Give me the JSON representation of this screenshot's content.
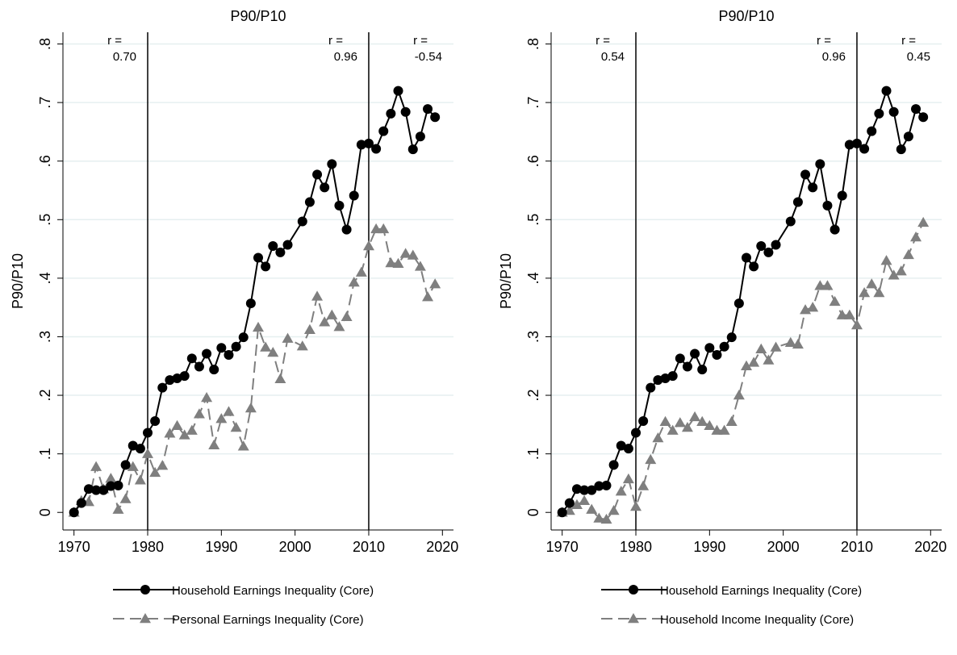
{
  "chart_data": [
    {
      "type": "line",
      "title": "P90/P10",
      "y_label": "P90/P10",
      "x": [
        1970,
        1971,
        1972,
        1973,
        1974,
        1975,
        1976,
        1977,
        1978,
        1979,
        1980,
        1981,
        1982,
        1983,
        1984,
        1985,
        1986,
        1987,
        1988,
        1989,
        1990,
        1991,
        1992,
        1993,
        1994,
        1995,
        1996,
        1997,
        1998,
        1999,
        2001,
        2002,
        2003,
        2004,
        2005,
        2006,
        2007,
        2008,
        2009,
        2010,
        2011,
        2012,
        2013,
        2014,
        2015,
        2016,
        2017,
        2018,
        2019
      ],
      "series": [
        {
          "name": "Household Earnings Inequality (Core)",
          "color": "#000000",
          "marker": "circle",
          "dash": "solid",
          "values": [
            0,
            0.016,
            0.04,
            0.038,
            0.038,
            0.045,
            0.046,
            0.081,
            0.114,
            0.109,
            0.136,
            0.156,
            0.213,
            0.226,
            0.229,
            0.233,
            0.263,
            0.249,
            0.271,
            0.244,
            0.281,
            0.269,
            0.283,
            0.299,
            0.357,
            0.435,
            0.42,
            0.455,
            0.444,
            0.457,
            0.497,
            0.53,
            0.577,
            0.555,
            0.595,
            0.524,
            0.483,
            0.541,
            0.628,
            0.63,
            0.621,
            0.651,
            0.681,
            0.72,
            0.684,
            0.62,
            0.642,
            0.689,
            0.675
          ]
        },
        {
          "name": "Personal Earnings Inequality (Core)",
          "color": "#7f7f7f",
          "marker": "triangle",
          "dash": "dashed",
          "values": [
            0,
            0.02,
            0.018,
            0.078,
            0.04,
            0.058,
            0.005,
            0.023,
            0.078,
            0.055,
            0.1,
            0.068,
            0.08,
            0.135,
            0.148,
            0.132,
            0.14,
            0.168,
            0.196,
            0.115,
            0.16,
            0.172,
            0.145,
            0.113,
            0.178,
            0.316,
            0.282,
            0.273,
            0.228,
            0.297,
            0.284,
            0.312,
            0.369,
            0.325,
            0.337,
            0.317,
            0.334,
            0.393,
            0.41,
            0.455,
            0.484,
            0.484,
            0.426,
            0.425,
            0.442,
            0.439,
            0.42,
            0.368,
            0.39
          ]
        }
      ],
      "vlines": [
        1980,
        2010
      ],
      "annotations": [
        [
          "r =",
          "0.70"
        ],
        [
          "r =",
          "0.96"
        ],
        [
          "r =",
          "-0.54"
        ]
      ],
      "xlim": [
        1968.5,
        2021.5
      ],
      "xticks": [
        1970,
        1980,
        1990,
        2000,
        2010,
        2020
      ],
      "ylim": [
        -0.03,
        0.82
      ],
      "yticks": [
        0,
        {
          "value": 0.1,
          "label": ".1"
        },
        {
          "value": 0.2,
          "label": ".2"
        },
        {
          "value": 0.3,
          "label": ".3"
        },
        {
          "value": 0.4,
          "label": ".4"
        },
        {
          "value": 0.5,
          "label": ".5"
        },
        {
          "value": 0.6,
          "label": ".6"
        },
        {
          "value": 0.7,
          "label": ".7"
        },
        {
          "value": 0.8,
          "label": ".8"
        }
      ],
      "grid": true
    },
    {
      "type": "line",
      "title": "P90/P10",
      "y_label": "P90/P10",
      "x": [
        1970,
        1971,
        1972,
        1973,
        1974,
        1975,
        1976,
        1977,
        1978,
        1979,
        1980,
        1981,
        1982,
        1983,
        1984,
        1985,
        1986,
        1987,
        1988,
        1989,
        1990,
        1991,
        1992,
        1993,
        1994,
        1995,
        1996,
        1997,
        1998,
        1999,
        2001,
        2002,
        2003,
        2004,
        2005,
        2006,
        2007,
        2008,
        2009,
        2010,
        2011,
        2012,
        2013,
        2014,
        2015,
        2016,
        2017,
        2018,
        2019
      ],
      "series": [
        {
          "name": "Household Earnings Inequality (Core)",
          "color": "#000000",
          "marker": "circle",
          "dash": "solid",
          "values": [
            0,
            0.016,
            0.04,
            0.038,
            0.038,
            0.045,
            0.046,
            0.081,
            0.114,
            0.109,
            0.136,
            0.156,
            0.213,
            0.226,
            0.229,
            0.233,
            0.263,
            0.249,
            0.271,
            0.244,
            0.281,
            0.269,
            0.283,
            0.299,
            0.357,
            0.435,
            0.42,
            0.455,
            0.444,
            0.457,
            0.497,
            0.53,
            0.577,
            0.555,
            0.595,
            0.524,
            0.483,
            0.541,
            0.628,
            0.63,
            0.621,
            0.651,
            0.681,
            0.72,
            0.684,
            0.62,
            0.642,
            0.689,
            0.675
          ]
        },
        {
          "name": "Household Income Inequality (Core)",
          "color": "#7f7f7f",
          "marker": "triangle",
          "dash": "dashed",
          "values": [
            0,
            0.003,
            0.013,
            0.02,
            0.005,
            -0.01,
            -0.012,
            0.003,
            0.036,
            0.057,
            0.01,
            0.045,
            0.09,
            0.127,
            0.155,
            0.14,
            0.153,
            0.145,
            0.163,
            0.155,
            0.148,
            0.14,
            0.14,
            0.155,
            0.2,
            0.25,
            0.256,
            0.279,
            0.26,
            0.282,
            0.29,
            0.287,
            0.346,
            0.35,
            0.387,
            0.387,
            0.36,
            0.337,
            0.337,
            0.32,
            0.375,
            0.39,
            0.375,
            0.43,
            0.405,
            0.412,
            0.44,
            0.47,
            0.495
          ]
        }
      ],
      "vlines": [
        1980,
        2010
      ],
      "annotations": [
        [
          "r =",
          "0.54"
        ],
        [
          "r =",
          "0.96"
        ],
        [
          "r =",
          "0.45"
        ]
      ],
      "xlim": [
        1968.5,
        2021.5
      ],
      "xticks": [
        1970,
        1980,
        1990,
        2000,
        2010,
        2020
      ],
      "ylim": [
        -0.03,
        0.82
      ],
      "yticks": [
        0,
        {
          "value": 0.1,
          "label": ".1"
        },
        {
          "value": 0.2,
          "label": ".2"
        },
        {
          "value": 0.3,
          "label": ".3"
        },
        {
          "value": 0.4,
          "label": ".4"
        },
        {
          "value": 0.5,
          "label": ".5"
        },
        {
          "value": 0.6,
          "label": ".6"
        },
        {
          "value": 0.7,
          "label": ".7"
        },
        {
          "value": 0.8,
          "label": ".8"
        }
      ],
      "grid": true
    }
  ]
}
